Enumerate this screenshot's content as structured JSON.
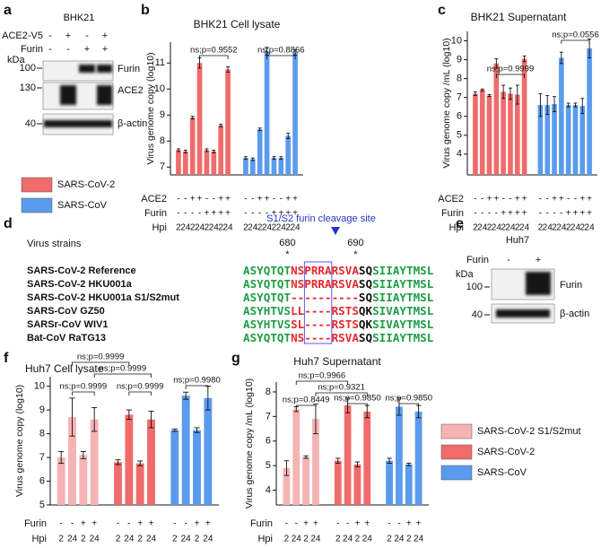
{
  "panel_labels": [
    "a",
    "b",
    "c",
    "d",
    "e",
    "f",
    "g"
  ],
  "panel_a": {
    "title": "BHK21",
    "conditions": [
      {
        "label": "ACE2-V5",
        "signs": [
          "-",
          "+",
          "-",
          "+"
        ]
      },
      {
        "label": "Furin",
        "signs": [
          "-",
          "-",
          "+",
          "+"
        ]
      }
    ],
    "unit": "kDa",
    "markers": [
      "100",
      "130",
      "40"
    ],
    "bands": [
      "Furin",
      "ACE2",
      "β-actin"
    ]
  },
  "chart_data": [
    {
      "type": "bar",
      "title": "BHK21 Cell lysate",
      "ylabel": "Virus genome copy (log10)",
      "ylim": [
        6.7,
        11.8
      ],
      "yticks": [
        7,
        8,
        9,
        10,
        11
      ],
      "series": [
        {
          "name": "SARS-CoV-2",
          "color": "#f06b6b",
          "values": [
            7.65,
            7.6,
            8.9,
            11.0,
            7.65,
            7.6,
            8.6,
            10.75
          ],
          "errors": [
            0.05,
            0.05,
            0.05,
            0.2,
            0.05,
            0.05,
            0.05,
            0.1
          ]
        },
        {
          "name": "SARS-CoV",
          "color": "#5b9bed",
          "values": [
            7.35,
            7.3,
            8.45,
            11.45,
            7.35,
            7.35,
            8.2,
            11.4
          ],
          "errors": [
            0.05,
            0.05,
            0.05,
            0.15,
            0.05,
            0.05,
            0.1,
            0.1
          ]
        }
      ],
      "rows": [
        {
          "label": "ACE2",
          "labels": [
            "-",
            "-",
            "+",
            "+",
            "-",
            "-",
            "+",
            "+",
            "-",
            "-",
            "+",
            "+",
            "-",
            "-",
            "+",
            "+"
          ]
        },
        {
          "label": "Furin",
          "labels": [
            "-",
            "-",
            "-",
            "-",
            "+",
            "+",
            "+",
            "+",
            "-",
            "-",
            "-",
            "-",
            "+",
            "+",
            "+",
            "+"
          ]
        },
        {
          "label": "Hpi",
          "labels": [
            "2",
            "24",
            "2",
            "24",
            "2",
            "24",
            "2",
            "24",
            "2",
            "24",
            "2",
            "24",
            "2",
            "24",
            "2",
            "24"
          ]
        }
      ],
      "annotations": [
        "ns;p=0.9552",
        "ns;p=0.8866"
      ]
    },
    {
      "type": "bar",
      "title": "BHK21 Supernatant",
      "ylabel": "Virus genome copy /mL (log10)",
      "ylim": [
        2.9,
        10.5
      ],
      "yticks": [
        4,
        5,
        6,
        7,
        8,
        9,
        10
      ],
      "series": [
        {
          "color": "#f06b6b",
          "values": [
            7.2,
            7.4,
            7.1,
            8.8,
            7.3,
            7.2,
            7.15,
            9.05
          ],
          "errors": [
            0.1,
            0.05,
            0.05,
            0.25,
            0.35,
            0.3,
            0.5,
            0.15
          ]
        },
        {
          "color": "#5b9bed",
          "values": [
            6.6,
            6.6,
            6.65,
            9.1,
            6.6,
            6.6,
            6.55,
            9.6
          ],
          "errors": [
            0.6,
            0.5,
            0.4,
            0.3,
            0.1,
            0.1,
            0.4,
            0.5
          ]
        }
      ],
      "rows": [
        {
          "label": "ACE2",
          "labels": [
            "-",
            "-",
            "+",
            "+",
            "-",
            "-",
            "+",
            "+",
            "-",
            "-",
            "+",
            "+",
            "-",
            "-",
            "+",
            "+"
          ]
        },
        {
          "label": "Furin",
          "labels": [
            "-",
            "-",
            "-",
            "-",
            "+",
            "+",
            "+",
            "+",
            "-",
            "-",
            "-",
            "-",
            "+",
            "+",
            "+",
            "+"
          ]
        },
        {
          "label": "Hpi",
          "labels": [
            "2",
            "24",
            "2",
            "24",
            "2",
            "24",
            "2",
            "24",
            "2",
            "24",
            "2",
            "24",
            "2",
            "24",
            "2",
            "24"
          ]
        }
      ],
      "annotations": [
        "ns;p=0.9999",
        "ns;p=0.0556"
      ]
    },
    {
      "type": "bar",
      "title": "Huh7 Cell lysate",
      "ylabel": "Virus genome copy (log10)",
      "ylim": [
        5,
        10.4
      ],
      "yticks": [
        5,
        6,
        7,
        8,
        9,
        10
      ],
      "series": [
        {
          "name": "SARS-CoV-2 S1/S2mut",
          "color": "#f6b3b3",
          "values": [
            7.0,
            8.7,
            7.1,
            8.6
          ],
          "errors": [
            0.25,
            0.8,
            0.15,
            0.5
          ]
        },
        {
          "name": "SARS-CoV-2",
          "color": "#f06b6b",
          "values": [
            6.8,
            8.8,
            6.75,
            8.6
          ],
          "errors": [
            0.1,
            0.2,
            0.1,
            0.35
          ]
        },
        {
          "name": "SARS-CoV",
          "color": "#5b9bed",
          "values": [
            8.15,
            9.6,
            8.15,
            9.5
          ],
          "errors": [
            0.05,
            0.15,
            0.1,
            0.5
          ]
        }
      ],
      "rows": [
        {
          "label": "Furin",
          "labels": [
            "-",
            "-",
            "+",
            "+",
            "-",
            "-",
            "+",
            "+",
            "-",
            "-",
            "+",
            "+"
          ]
        },
        {
          "label": "Hpi",
          "labels": [
            "2",
            "24",
            "2",
            "24",
            "2",
            "24",
            "2",
            "24",
            "2",
            "24",
            "2",
            "24"
          ]
        }
      ],
      "annotations": [
        "ns;p=0.9999",
        "ns;p=0.9999",
        "ns;p=0.9999",
        "ns;p=0.9999",
        "ns;p=0.9980"
      ]
    },
    {
      "type": "bar",
      "title": "Huh7 Supernatant",
      "ylabel": "Virus genome copy /mL (log10)",
      "ylim": [
        3.4,
        8.4
      ],
      "yticks": [
        4,
        5,
        6,
        7,
        8
      ],
      "series": [
        {
          "color": "#f6b3b3",
          "values": [
            4.9,
            7.3,
            5.35,
            6.9
          ],
          "errors": [
            0.3,
            0.1,
            0.05,
            0.6
          ]
        },
        {
          "color": "#f06b6b",
          "values": [
            5.2,
            7.45,
            5.05,
            7.2
          ],
          "errors": [
            0.1,
            0.3,
            0.1,
            0.25
          ]
        },
        {
          "color": "#5b9bed",
          "values": [
            5.2,
            7.4,
            5.05,
            7.2
          ],
          "errors": [
            0.1,
            0.35,
            0.05,
            0.25
          ]
        }
      ],
      "rows": [
        {
          "label": "Furin",
          "labels": [
            "-",
            "-",
            "+",
            "+",
            "-",
            "-",
            "+",
            "+",
            "-",
            "-",
            "+",
            "+"
          ]
        },
        {
          "label": "Hpi",
          "labels": [
            "2",
            "24",
            "2",
            "24",
            "2",
            "24",
            "2",
            "24",
            "2",
            "24",
            "2",
            "24"
          ]
        }
      ],
      "annotations": [
        "ns;p=0.9966",
        "ns;p=0.9321",
        "ns;p=0.8449",
        "ns;p=0.9850",
        "ns;p=0.9850"
      ]
    }
  ],
  "panel_d": {
    "heading": "Virus strains",
    "site": "S1/S2 furin cleavage site",
    "positions": [
      "680",
      "690"
    ],
    "marks": [
      "*",
      "*"
    ],
    "strains": [
      {
        "name": "SARS-CoV-2 Reference",
        "segments": [
          {
            "text": "ASYQTQT",
            "color": "#1f9e45"
          },
          {
            "text": "NSPRRARSVA",
            "color": "#e52a2f"
          },
          {
            "text": "SQ",
            "color": "#111111"
          },
          {
            "text": "SIIAYTMSL",
            "color": "#1f9e45"
          }
        ]
      },
      {
        "name": "SARS-CoV-2 HKU001a",
        "segments": [
          {
            "text": "ASYQTQT",
            "color": "#1f9e45"
          },
          {
            "text": "NSPRRARSVA",
            "color": "#e52a2f"
          },
          {
            "text": "SQ",
            "color": "#111111"
          },
          {
            "text": "SIIAYTMSL",
            "color": "#1f9e45"
          }
        ]
      },
      {
        "name": "SARS-CoV-2 HKU001a S1/S2mut",
        "segments": [
          {
            "text": "ASYQTQT",
            "color": "#1f9e45"
          },
          {
            "text": "----------",
            "color": "#e52a2f"
          },
          {
            "text": "SQ",
            "color": "#111111"
          },
          {
            "text": "SIIAYTMSL",
            "color": "#1f9e45"
          }
        ]
      },
      {
        "name": "SARS-CoV GZ50",
        "segments": [
          {
            "text": "ASYHTVS",
            "color": "#1f9e45"
          },
          {
            "text": "LL----RSTS",
            "color": "#e52a2f"
          },
          {
            "text": "QK",
            "color": "#111111"
          },
          {
            "text": "SIVAYTMSL",
            "color": "#1f9e45"
          }
        ]
      },
      {
        "name": "SARSr-CoV WIV1",
        "segments": [
          {
            "text": "ASYHTVS",
            "color": "#1f9e45"
          },
          {
            "text": "SL----RSTS",
            "color": "#e52a2f"
          },
          {
            "text": "QK",
            "color": "#111111"
          },
          {
            "text": "SIVAYTMSL",
            "color": "#1f9e45"
          }
        ]
      },
      {
        "name": "Bat-CoV RaTG13",
        "segments": [
          {
            "text": "ASYQTQT",
            "color": "#1f9e45"
          },
          {
            "text": "NS----RSVA",
            "color": "#e52a2f"
          },
          {
            "text": "SQ",
            "color": "#111111"
          },
          {
            "text": "SIIAYTMSL",
            "color": "#1f9e45"
          }
        ]
      }
    ]
  },
  "panel_e": {
    "title": "Huh7",
    "condition": {
      "label": "Furin",
      "signs": [
        "-",
        "+"
      ]
    },
    "unit": "kDa",
    "markers": [
      "100",
      "40"
    ],
    "bands": [
      "Furin",
      "β-actin"
    ]
  }
}
